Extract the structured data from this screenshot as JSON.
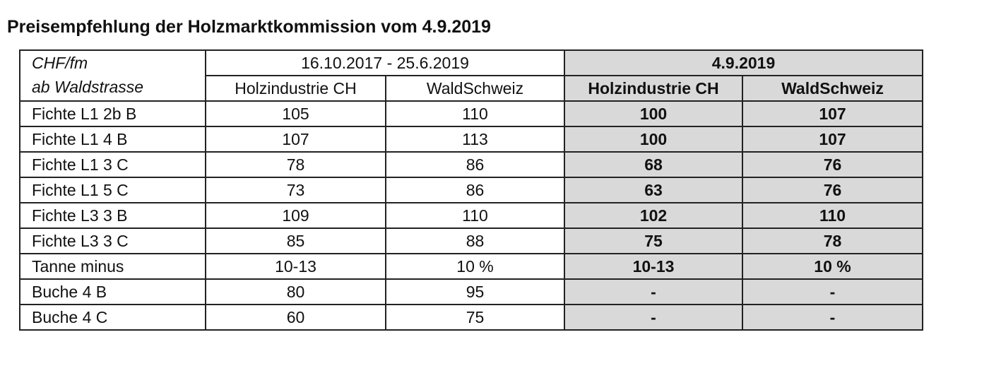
{
  "title": "Preisempfehlung der Holzmarktkommission vom 4.9.2019",
  "table": {
    "corner": [
      "CHF/fm",
      "ab Waldstrasse"
    ],
    "groups": [
      "16.10.2017 - 25.6.2019",
      "4.9.2019"
    ],
    "columns": [
      "Holzindustrie CH",
      "WaldSchweiz",
      "Holzindustrie CH",
      "WaldSchweiz"
    ],
    "rows": [
      [
        "Fichte L1 2b B",
        "105",
        "110",
        "100",
        "107"
      ],
      [
        "Fichte L1 4 B",
        "107",
        "113",
        "100",
        "107"
      ],
      [
        "Fichte L1 3 C",
        "78",
        "86",
        "68",
        "76"
      ],
      [
        "Fichte L1 5 C",
        "73",
        "86",
        "63",
        "76"
      ],
      [
        "Fichte L3 3 B",
        "109",
        "110",
        "102",
        "110"
      ],
      [
        "Fichte L3 3 C",
        "85",
        "88",
        "75",
        "78"
      ],
      [
        "Tanne minus",
        "10-13",
        "10 %",
        "10-13",
        "10 %"
      ],
      [
        "Buche 4 B",
        "80",
        "95",
        "-",
        "-"
      ],
      [
        "Buche 4 C",
        "60",
        "75",
        "-",
        "-"
      ]
    ]
  }
}
